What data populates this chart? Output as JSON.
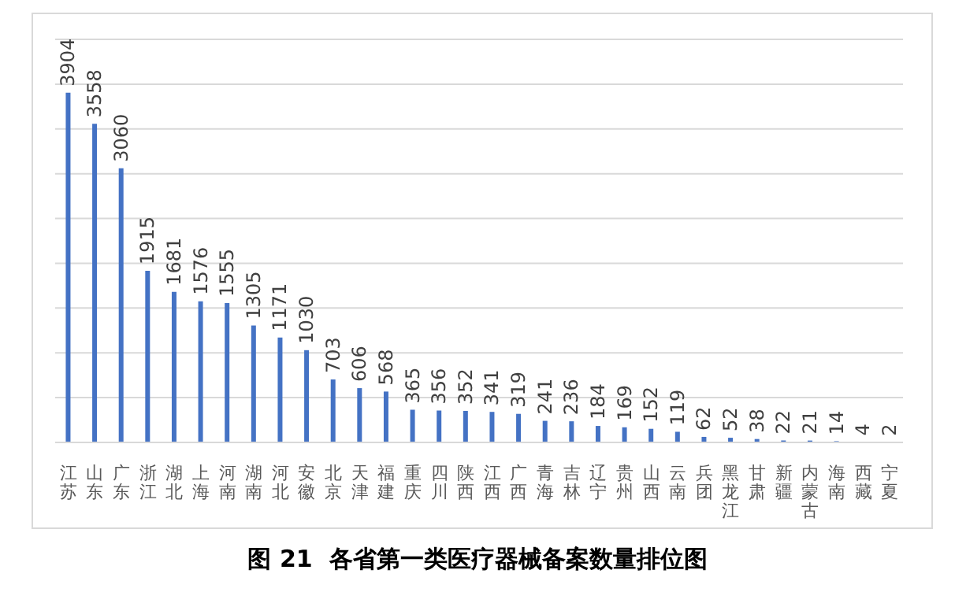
{
  "chart_data": {
    "type": "bar",
    "title": "图 21  各省第一类医疗器械备案数量排位图",
    "categories": [
      "江苏",
      "山东",
      "广东",
      "浙江",
      "湖北",
      "上海",
      "河南",
      "湖南",
      "河北",
      "安徽",
      "北京",
      "天津",
      "福建",
      "重庆",
      "四川",
      "陕西",
      "江西",
      "广西",
      "青海",
      "吉林",
      "辽宁",
      "贵州",
      "山西",
      "云南",
      "兵团",
      "黑龙江",
      "甘肃",
      "新疆",
      "内蒙古",
      "海南",
      "西藏",
      "宁夏"
    ],
    "values": [
      3904,
      3558,
      3060,
      1915,
      1681,
      1576,
      1555,
      1305,
      1171,
      1030,
      703,
      606,
      568,
      365,
      356,
      352,
      341,
      319,
      241,
      236,
      184,
      169,
      152,
      119,
      62,
      52,
      38,
      22,
      21,
      14,
      4,
      2
    ],
    "color": "#4472c4",
    "ylim": [
      0,
      4500
    ],
    "yticks": [
      {
        "value": 0,
        "label": null
      },
      {
        "value": 500,
        "label": null
      },
      {
        "value": 1000,
        "label": null
      },
      {
        "value": 1500,
        "label": null
      },
      {
        "value": 2000,
        "label": null
      },
      {
        "value": 2500,
        "label": null
      },
      {
        "value": 3000,
        "label": null
      },
      {
        "value": 3500,
        "label": null
      },
      {
        "value": 4000,
        "label": null
      },
      {
        "value": 4500,
        "label": null
      }
    ],
    "grid": "y",
    "tick_labels": "x",
    "data_labels": true
  }
}
